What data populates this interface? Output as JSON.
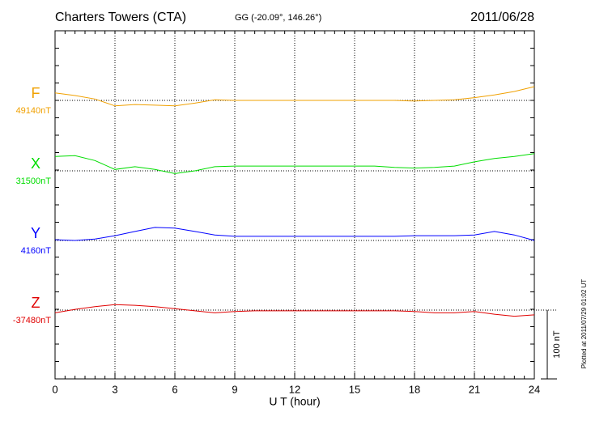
{
  "chart_data": {
    "type": "line",
    "title": "Charters Towers (CTA)",
    "subtitle": "GG (-20.09°, 146.26°)",
    "date": "2011/06/28",
    "x_label": "U T (hour)",
    "footnote": "Plotted at 2011/07/29 01:02 UT",
    "xlim": [
      0,
      24
    ],
    "xticks": [
      0,
      3,
      6,
      9,
      12,
      15,
      18,
      21,
      24
    ],
    "grid": true,
    "scale_bar": {
      "value": 100,
      "label": "100 nT"
    },
    "x": [
      0,
      1,
      2,
      3,
      4,
      5,
      6,
      7,
      8,
      9,
      10,
      11,
      12,
      13,
      14,
      15,
      16,
      17,
      18,
      19,
      20,
      21,
      22,
      23,
      24
    ],
    "series": [
      {
        "name": "F",
        "color": "#f0a000",
        "baseline": {
          "value": 49140,
          "label": "49140nT"
        },
        "values": [
          49151,
          49147,
          49142,
          49132,
          49134,
          49133,
          49132,
          49136,
          49141,
          49140,
          49140,
          49140,
          49140,
          49140,
          49140,
          49140,
          49140,
          49140,
          49139,
          49140,
          49141,
          49144,
          49148,
          49153,
          49160
        ]
      },
      {
        "name": "X",
        "color": "#00dd00",
        "baseline": {
          "value": 31500,
          "label": "31500nT"
        },
        "values": [
          31521,
          31522,
          31515,
          31502,
          31506,
          31502,
          31496,
          31500,
          31506,
          31507,
          31507,
          31507,
          31507,
          31507,
          31507,
          31507,
          31507,
          31505,
          31504,
          31505,
          31507,
          31513,
          31518,
          31521,
          31525
        ]
      },
      {
        "name": "Y",
        "color": "#0000ff",
        "baseline": {
          "value": 4160,
          "label": "4160nT"
        },
        "values": [
          4161,
          4160,
          4162,
          4167,
          4173,
          4179,
          4178,
          4173,
          4168,
          4166,
          4166,
          4166,
          4166,
          4166,
          4166,
          4166,
          4166,
          4166,
          4167,
          4167,
          4167,
          4168,
          4173,
          4168,
          4160
        ]
      },
      {
        "name": "Z",
        "color": "#e00000",
        "baseline": {
          "value": -37480,
          "label": "-37480nT"
        },
        "values": [
          -37484,
          -37479,
          -37475,
          -37472,
          -37473,
          -37475,
          -37478,
          -37481,
          -37484,
          -37482,
          -37481,
          -37481,
          -37481,
          -37481,
          -37481,
          -37481,
          -37481,
          -37481,
          -37482,
          -37484,
          -37484,
          -37482,
          -37486,
          -37489,
          -37487
        ]
      }
    ]
  }
}
